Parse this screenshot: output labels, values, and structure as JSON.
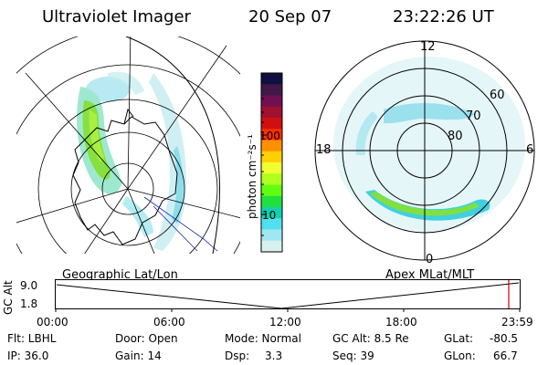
{
  "header": {
    "title": "Ultraviolet Imager",
    "date": "20 Sep 07",
    "time": "23:22:26 UT"
  },
  "left_panel": {
    "caption": "Geographic Lat/Lon"
  },
  "right_panel": {
    "caption": "Apex MLat/MLT",
    "mlt_labels": [
      "12",
      "6",
      "0",
      "18"
    ],
    "lat_labels": [
      "60",
      "70",
      "80"
    ]
  },
  "colorbar": {
    "unit": "photon cm⁻²s⁻¹",
    "tick_labels": [
      "100",
      "10"
    ],
    "colors": [
      "#101040",
      "#401848",
      "#701050",
      "#a01030",
      "#d01010",
      "#ff3000",
      "#ff9000",
      "#ffd000",
      "#f0ff30",
      "#b0ff20",
      "#60ff10",
      "#20e040",
      "#10d0b0",
      "#50e0f0",
      "#a0e8f0",
      "#d8f0f0"
    ]
  },
  "altitude_plot": {
    "ylabel": "GC Alt",
    "y_ticks": [
      "9.0",
      "1.8"
    ],
    "x_ticks": [
      "00:00",
      "06:00",
      "12:00",
      "18:00",
      "23:59"
    ],
    "curve_color": "#000000",
    "marker_color": "#cc0000"
  },
  "info": {
    "filter": "Flt: LBHL",
    "ip": "IP: 36.0",
    "door": "Door: Open",
    "gain": "Gain: 14",
    "mode": "Mode: Normal",
    "dsp_label": "Dsp:",
    "dsp_value": "3.3",
    "gc_alt": "GC Alt: 8.5 Re",
    "seq": "Seq: 39",
    "glat_label": "GLat:",
    "glat_value": "-80.5",
    "glon_label": "GLon:",
    "glon_value": "66.7"
  }
}
